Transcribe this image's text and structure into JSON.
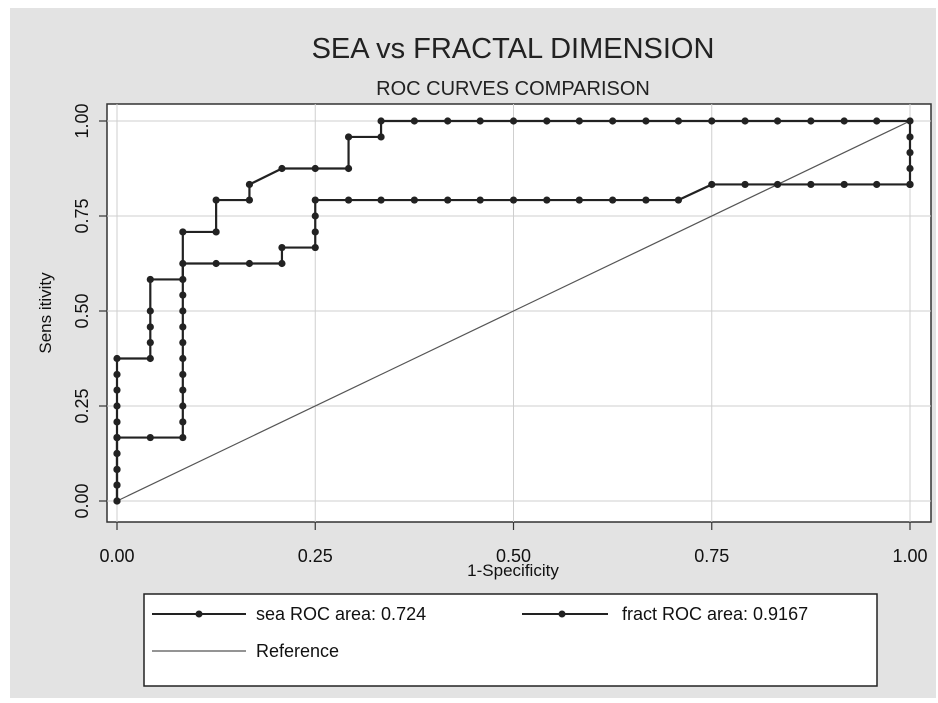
{
  "chart_data": {
    "type": "line",
    "title": "SEA vs FRACTAL DIMENSION",
    "subtitle": "ROC CURVES COMPARISON",
    "xlabel": "1-Specificity",
    "ylabel": "Sens itivity",
    "xlim": [
      0,
      1
    ],
    "ylim": [
      0,
      1
    ],
    "x_ticks": [
      "0.00",
      "0.25",
      "0.50",
      "0.75",
      "1.00"
    ],
    "y_ticks": [
      "0.00",
      "0.25",
      "0.50",
      "0.75",
      "1.00"
    ],
    "grid": true,
    "legend_position": "bottom",
    "series": [
      {
        "name": "sea ROC area: 0.724",
        "color": "#222222",
        "x": [
          0,
          0,
          0,
          0,
          0,
          0,
          0.042,
          0.083,
          0.083,
          0.083,
          0.083,
          0.083,
          0.083,
          0.083,
          0.083,
          0.083,
          0.083,
          0.083,
          0.125,
          0.167,
          0.208,
          0.208,
          0.25,
          0.25,
          0.25,
          0.25,
          0.292,
          0.333,
          0.375,
          0.417,
          0.458,
          0.5,
          0.542,
          0.583,
          0.625,
          0.667,
          0.708,
          0.75,
          0.792,
          0.833,
          0.875,
          0.917,
          0.958,
          1.0
        ],
        "y": [
          0,
          0.042,
          0.083,
          0.125,
          0.167,
          0.167,
          0.167,
          0.167,
          0.208,
          0.25,
          0.292,
          0.333,
          0.375,
          0.417,
          0.458,
          0.5,
          0.542,
          0.625,
          0.625,
          0.625,
          0.625,
          0.667,
          0.667,
          0.708,
          0.75,
          0.792,
          0.792,
          0.792,
          0.792,
          0.792,
          0.792,
          0.792,
          0.792,
          0.792,
          0.792,
          0.792,
          0.792,
          0.833,
          0.833,
          0.833,
          0.833,
          0.833,
          0.833,
          0.833
        ]
      },
      {
        "name": "fract ROC area: 0.9167",
        "color": "#222222",
        "x": [
          0,
          0,
          0,
          0,
          0,
          0,
          0,
          0,
          0,
          0,
          0.042,
          0.042,
          0.042,
          0.042,
          0.042,
          0.083,
          0.083,
          0.125,
          0.125,
          0.167,
          0.167,
          0.208,
          0.25,
          0.292,
          0.292,
          0.333,
          0.333,
          0.375,
          0.417,
          0.458,
          0.5,
          0.542,
          0.583,
          0.625,
          0.667,
          0.708,
          0.75,
          0.792,
          0.833,
          0.875,
          0.917,
          0.958,
          1.0,
          1.0,
          1.0,
          1.0,
          1.0,
          1.0
        ],
        "y": [
          0,
          0.042,
          0.083,
          0.125,
          0.167,
          0.208,
          0.25,
          0.292,
          0.333,
          0.375,
          0.375,
          0.417,
          0.458,
          0.5,
          0.583,
          0.583,
          0.708,
          0.708,
          0.792,
          0.792,
          0.833,
          0.875,
          0.875,
          0.875,
          0.958,
          0.958,
          1.0,
          1.0,
          1.0,
          1.0,
          1.0,
          1.0,
          1.0,
          1.0,
          1.0,
          1.0,
          1.0,
          1.0,
          1.0,
          1.0,
          1.0,
          1.0,
          1.0,
          0.958,
          0.917,
          0.875,
          0.833,
          0.833
        ]
      },
      {
        "name": "Reference",
        "color": "#555555",
        "x": [
          0,
          1
        ],
        "y": [
          0,
          1
        ]
      }
    ]
  }
}
